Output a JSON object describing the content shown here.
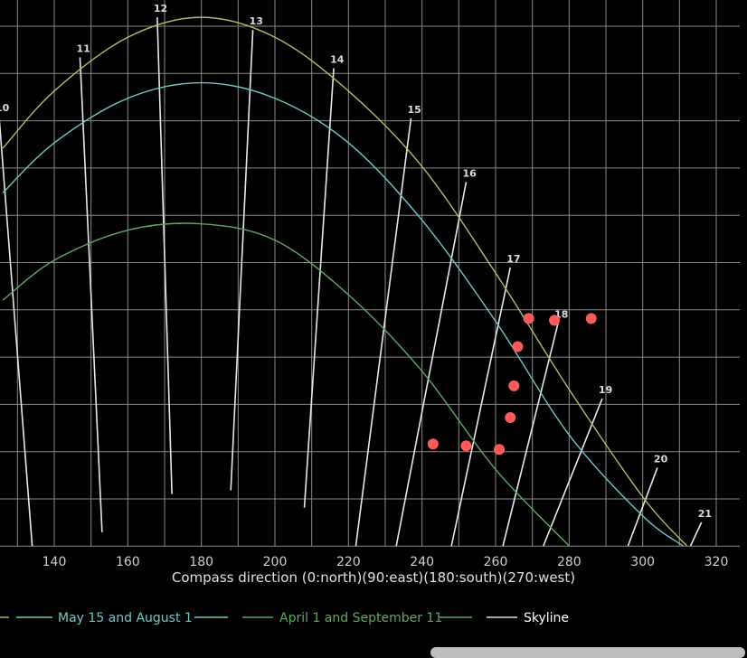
{
  "chart_data": {
    "type": "line",
    "xlabel": "Compass direction (0:north)(90:east)(180:south)(270:west)",
    "x_ticks": [
      "140",
      "160",
      "180",
      "200",
      "220",
      "240",
      "260",
      "280",
      "300",
      "320"
    ],
    "xlim": [
      126,
      326
    ],
    "ylim": [
      0,
      60
    ],
    "grid": true,
    "legend_position": "bottom",
    "colors": {
      "background": "#000000",
      "grid": "#8a8a8a",
      "summer": "#b8b860",
      "may_aug": "#6fc7c7",
      "apr_sep": "#5fa85f",
      "skyline": "#e0e0e0",
      "hour_lines": "#e8e8e8",
      "points": "#ff5a5a"
    },
    "series": [
      {
        "key": "summer",
        "color": "#b8b860",
        "points": [
          [
            126,
            43.7
          ],
          [
            140,
            50.0
          ],
          [
            160,
            55.9
          ],
          [
            180,
            58.1
          ],
          [
            200,
            55.9
          ],
          [
            220,
            50.0
          ],
          [
            240,
            41.7
          ],
          [
            260,
            30.0
          ],
          [
            280,
            17.2
          ],
          [
            300,
            5.4
          ],
          [
            312,
            0.0
          ]
        ]
      },
      {
        "key": "may_aug",
        "name": "May 15 and August 1",
        "color": "#6fc7c7",
        "points": [
          [
            126,
            38.8
          ],
          [
            140,
            44.3
          ],
          [
            160,
            49.2
          ],
          [
            180,
            50.9
          ],
          [
            200,
            49.2
          ],
          [
            220,
            44.3
          ],
          [
            240,
            35.8
          ],
          [
            260,
            24.7
          ],
          [
            280,
            12.2
          ],
          [
            300,
            3.3
          ],
          [
            311,
            0.0
          ]
        ]
      },
      {
        "key": "apr_sep",
        "name": "April 1 and September 11",
        "color": "#5fa85f",
        "points": [
          [
            126,
            27.0
          ],
          [
            140,
            31.4
          ],
          [
            160,
            34.7
          ],
          [
            180,
            35.4
          ],
          [
            200,
            33.6
          ],
          [
            220,
            27.6
          ],
          [
            240,
            19.2
          ],
          [
            260,
            8.4
          ],
          [
            280,
            0.0
          ]
        ]
      }
    ],
    "hour_lines": [
      {
        "label": "10",
        "top": [
          125,
          47.2
        ],
        "bottom": [
          134,
          0.0
        ]
      },
      {
        "label": "11",
        "top": [
          147,
          53.7
        ],
        "bottom": [
          153,
          1.5
        ]
      },
      {
        "label": "12",
        "top": [
          168,
          58.1
        ],
        "bottom": [
          172,
          5.7
        ]
      },
      {
        "label": "13",
        "top": [
          194,
          56.7
        ],
        "bottom": [
          188,
          6.1
        ]
      },
      {
        "label": "14",
        "top": [
          216,
          52.5
        ],
        "bottom": [
          208,
          4.2
        ]
      },
      {
        "label": "15",
        "top": [
          237,
          47.0
        ],
        "bottom": [
          222,
          0.0
        ]
      },
      {
        "label": "16",
        "top": [
          252,
          40.0
        ],
        "bottom": [
          233,
          0.0
        ]
      },
      {
        "label": "17",
        "top": [
          264,
          30.6
        ],
        "bottom": [
          248,
          0.0
        ]
      },
      {
        "label": "18",
        "top": [
          277,
          24.5
        ],
        "bottom": [
          262,
          0.0
        ]
      },
      {
        "label": "19",
        "top": [
          289,
          16.2
        ],
        "bottom": [
          273,
          0.0
        ]
      },
      {
        "label": "20",
        "top": [
          304,
          8.6
        ],
        "bottom": [
          296,
          0.0
        ]
      },
      {
        "label": "21",
        "top": [
          316,
          2.6
        ],
        "bottom": [
          313,
          0.0
        ]
      }
    ],
    "scatter": {
      "name": "Skyline",
      "color": "#ff5a5a",
      "points": [
        [
          269,
          25.0
        ],
        [
          276,
          24.8
        ],
        [
          286,
          25.0
        ],
        [
          266,
          21.9
        ],
        [
          265,
          17.6
        ],
        [
          264,
          14.1
        ],
        [
          243,
          11.2
        ],
        [
          252,
          11.0
        ],
        [
          261,
          10.6
        ]
      ]
    },
    "legend": [
      {
        "label": "May 15 and August 1",
        "color": "#6fc7c7"
      },
      {
        "label": "April 1 and September 11",
        "color": "#5fa85f"
      },
      {
        "label": "Skyline",
        "color": "#ffffff",
        "line_color": "#e0e0e0"
      }
    ]
  }
}
